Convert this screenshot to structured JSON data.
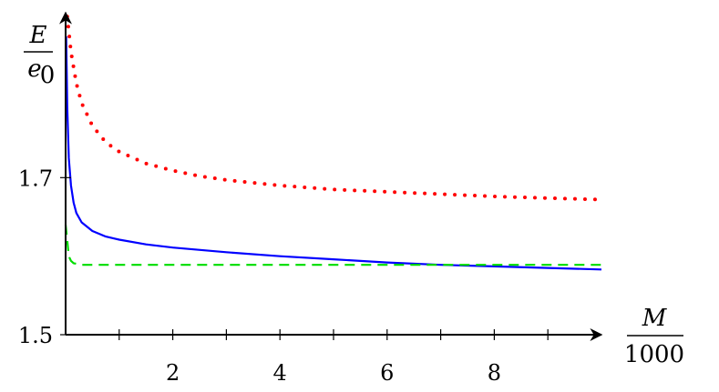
{
  "chart_data": {
    "type": "line",
    "title": "",
    "xlabel": {
      "numerator": "M",
      "denominator": "1000"
    },
    "ylabel": {
      "numerator": "E",
      "denominator_base": "e",
      "denominator_sub": "0"
    },
    "xlim": [
      0,
      10
    ],
    "ylim": [
      1.5,
      1.91
    ],
    "x_tick_values": [
      1,
      2,
      3,
      4,
      5,
      6,
      7,
      8,
      9
    ],
    "x_tick_labels": [
      {
        "value": 2,
        "label": "2"
      },
      {
        "value": 4,
        "label": "4"
      },
      {
        "value": 6,
        "label": "6"
      },
      {
        "value": 8,
        "label": "8"
      }
    ],
    "y_tick_labels": [
      {
        "value": 1.5,
        "label": "1.5"
      },
      {
        "value": 1.7,
        "label": "1.7"
      }
    ],
    "grid": false,
    "series": [
      {
        "color": "#ff0000",
        "style": "dotted",
        "x": [
          0.03,
          0.1,
          0.2,
          0.3,
          0.5,
          0.75,
          1.0,
          1.5,
          2.0,
          2.5,
          3.0,
          4.0,
          5.0,
          6.0,
          7.0,
          8.0,
          9.0,
          10.0
        ],
        "y": [
          1.905,
          1.86,
          1.82,
          1.795,
          1.766,
          1.745,
          1.733,
          1.718,
          1.709,
          1.702,
          1.697,
          1.69,
          1.685,
          1.682,
          1.679,
          1.676,
          1.674,
          1.672
        ]
      },
      {
        "color": "#0000ff",
        "style": "solid",
        "x": [
          0.01,
          0.03,
          0.06,
          0.1,
          0.15,
          0.2,
          0.3,
          0.5,
          0.75,
          1.0,
          1.5,
          2.0,
          3.0,
          4.0,
          5.0,
          6.0,
          7.0,
          8.0,
          9.0,
          10.0
        ],
        "y": [
          1.88,
          1.79,
          1.725,
          1.69,
          1.668,
          1.655,
          1.643,
          1.632,
          1.625,
          1.621,
          1.615,
          1.611,
          1.605,
          1.6,
          1.596,
          1.592,
          1.589,
          1.587,
          1.585,
          1.583
        ]
      },
      {
        "color": "#00dd00",
        "style": "dashed",
        "x": [
          0.0,
          0.03,
          0.06,
          0.1,
          0.15,
          0.3,
          0.5,
          1.0,
          2.0,
          4.0,
          6.0,
          8.0,
          10.0
        ],
        "y": [
          1.64,
          1.62,
          1.6,
          1.594,
          1.591,
          1.589,
          1.589,
          1.589,
          1.589,
          1.589,
          1.589,
          1.589,
          1.589
        ]
      }
    ]
  }
}
